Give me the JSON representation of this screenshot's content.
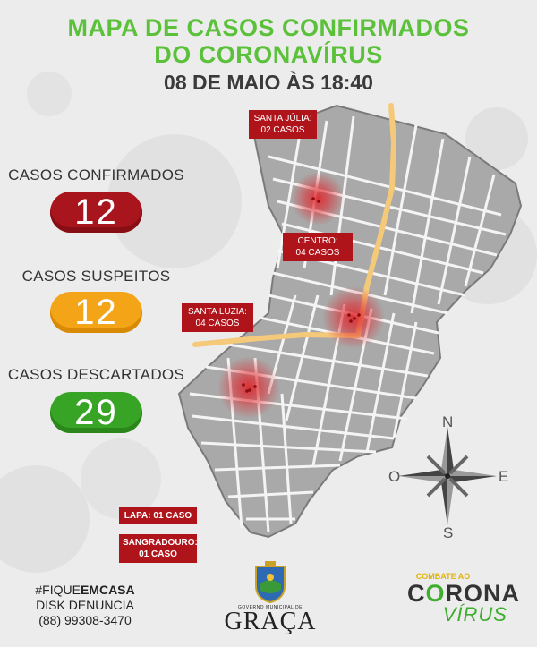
{
  "title": {
    "line1": "MAPA DE CASOS CONFIRMADOS",
    "line2": "DO CORONAVÍRUS",
    "date": "08 DE MAIO ÀS 18:40"
  },
  "stats": {
    "confirmed": {
      "label": "CASOS CONFIRMADOS",
      "value": "12",
      "color": "#a8151d"
    },
    "suspected": {
      "label": "CASOS SUSPEITOS",
      "value": "12",
      "color": "#f3a417"
    },
    "discarded": {
      "label": "CASOS DESCARTADOS",
      "value": "29",
      "color": "#38a426"
    }
  },
  "map": {
    "labels": {
      "santa_julia": {
        "name": "SANTA JÚLIA:",
        "count": "02 CASOS"
      },
      "centro": {
        "name": "CENTRO:",
        "count": "04 CASOS"
      },
      "santa_luzia": {
        "name": "SANTA LUZIA:",
        "count": "04 CASOS"
      },
      "lapa": "LAPA: 01 CASO",
      "sangradouro": {
        "name": "SANGRADOURO:",
        "count": "01 CASO"
      }
    },
    "compass": {
      "n": "N",
      "s": "S",
      "e": "E",
      "o": "O"
    },
    "road_color": "#f5c97a",
    "hotspot_color": "#e0242a"
  },
  "footer": {
    "hashtag_prefix": "#FIQUE",
    "hashtag_bold": "EMCASA",
    "disk_label": "DISK DENUNCIA",
    "phone": "(88) 99308-3470",
    "gov_small": "GOVERNO MUNICIPAL DE",
    "gov_name": "GRAÇA",
    "campaign_small": "COMBATE AO",
    "campaign_corona_a": "C",
    "campaign_corona_o": "O",
    "campaign_corona_b": "RONA",
    "campaign_virus": "VÍRUS"
  }
}
